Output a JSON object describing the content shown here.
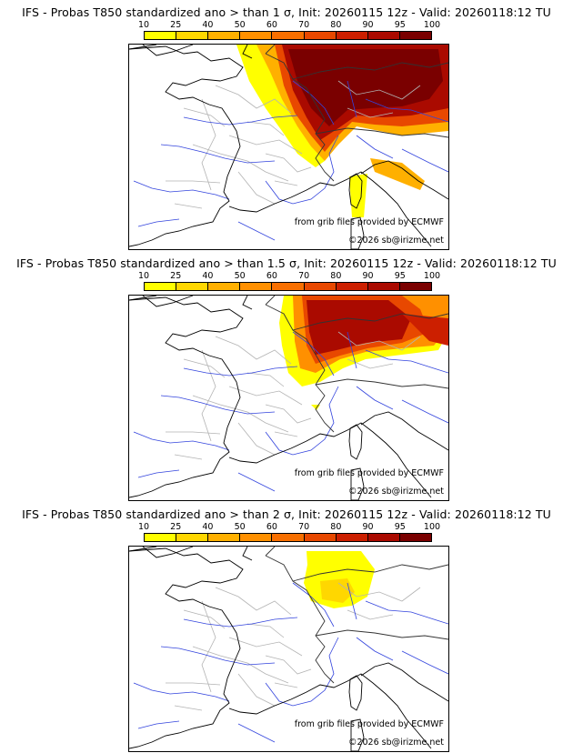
{
  "colorbar": {
    "ticks": [
      "10",
      "25",
      "40",
      "50",
      "60",
      "70",
      "80",
      "90",
      "95",
      "100"
    ],
    "colors": [
      "#ffff00",
      "#ffd700",
      "#ffb000",
      "#ff9000",
      "#f86f00",
      "#e84800",
      "#cc1f00",
      "#aa0a00",
      "#7a0000"
    ]
  },
  "credit": {
    "source": "from grib files provided by ECMWF",
    "copyright": "©2026 sb@irizme.net"
  },
  "panels": [
    {
      "title": "IFS - Probas T850  standardized ano > than 1 σ, Init: 20260115 12z - Valid: 20260118:12 TU"
    },
    {
      "title": "IFS - Probas T850  standardized ano > than 1.5 σ, Init: 20260115 12z - Valid: 20260118:12 TU"
    },
    {
      "title": "IFS - Probas T850  standardized ano > than 2 σ, Init: 20260115 12z - Valid: 20260118:12 TU"
    }
  ]
}
